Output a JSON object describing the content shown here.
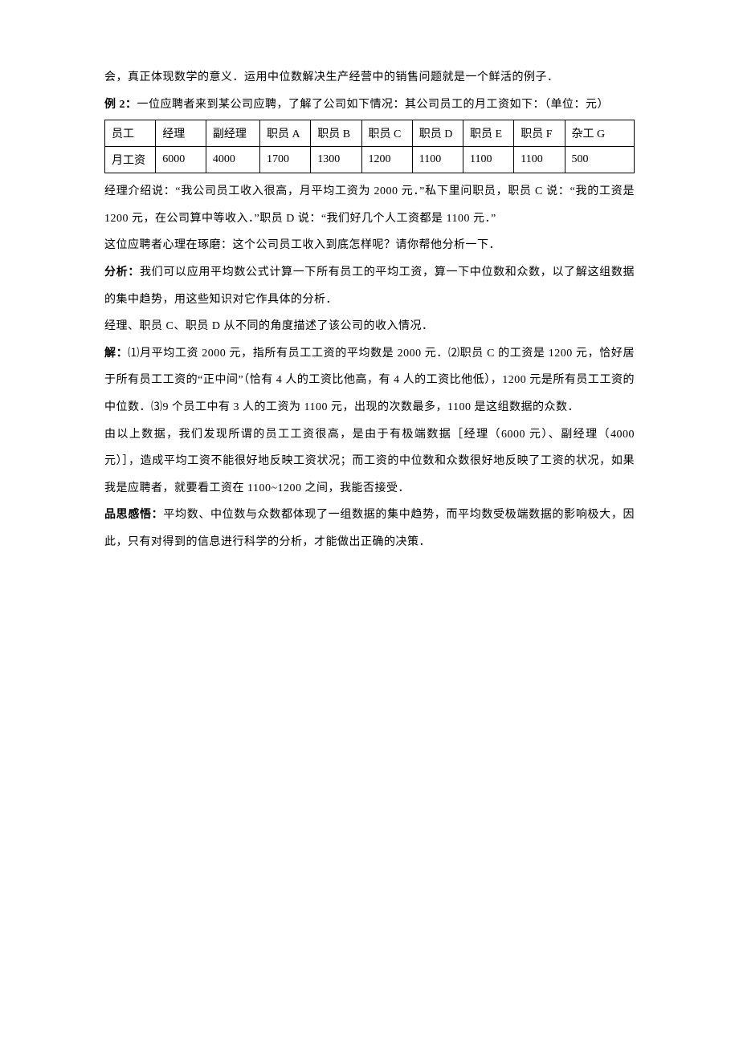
{
  "paragraphs": {
    "p1": "会，真正体现数学的意义．运用中位数解决生产经营中的销售问题就是一个鲜活的例子．",
    "p2_label": "例 2：",
    "p2_text": "一位应聘者来到某公司应聘，了解了公司如下情况：其公司员工的月工资如下：（单位：元）",
    "p3": "经理介绍说：“我公司员工收入很高，月平均工资为 2000 元．”私下里问职员，职员 C 说：“我的工资是 1200 元，在公司算中等收入．”职员 D 说：“我们好几个人工资都是 1100 元．”",
    "p4": "这位应聘者心理在琢磨：这个公司员工收入到底怎样呢？请你帮他分析一下．",
    "p5_label": "分析：",
    "p5_text": "我们可以应用平均数公式计算一下所有员工的平均工资，算一下中位数和众数，以了解这组数据的集中趋势，用这些知识对它作具体的分析．",
    "p6": "经理、职员 C、职员 D 从不同的角度描述了该公司的收入情况．",
    "p7_label": "解：",
    "p7_text": "⑴月平均工资 2000 元，指所有员工工资的平均数是 2000 元．⑵职员 C 的工资是 1200 元，恰好居于所有员工工资的“正中间”（恰有 4 人的工资比他高，有 4 人的工资比他低），1200 元是所有员工工资的中位数．⑶9 个员工中有 3 人的工资为 1100 元，出现的次数最多，1100 是这组数据的众数．",
    "p8": "由以上数据，我们发现所谓的员工工资很高，是由于有极端数据［经理（6000 元）、副经理（4000 元）］，造成平均工资不能很好地反映工资状况；而工资的中位数和众数很好地反映了工资的状况，如果我是应聘者，就要看工资在 1100~1200 之间，我能否接受．",
    "p9_label": "品思感悟：",
    "p9_text": "平均数、中位数与众数都体现了一组数据的集中趋势，而平均数受极端数据的影响极大，因此，只有对得到的信息进行科学的分析，才能做出正确的决策．"
  },
  "table": {
    "type": "table",
    "border_color": "#000000",
    "background_color": "#ffffff",
    "text_color": "#000000",
    "font_size": 14,
    "column_widths": [
      "9.6%",
      "9.5%",
      "10.2%",
      "9.6%",
      "9.6%",
      "9.6%",
      "9.6%",
      "9.6%",
      "9.6%",
      "13.1%"
    ],
    "rows": [
      [
        "员工",
        "经理",
        "副经理",
        "职员 A",
        "职员 B",
        "职员 C",
        "职员 D",
        "职员 E",
        "职员 F",
        "杂工 G"
      ],
      [
        "月工资",
        "6000",
        "4000",
        "1700",
        "1300",
        "1200",
        "1100",
        "1100",
        "1100",
        "500"
      ]
    ]
  }
}
